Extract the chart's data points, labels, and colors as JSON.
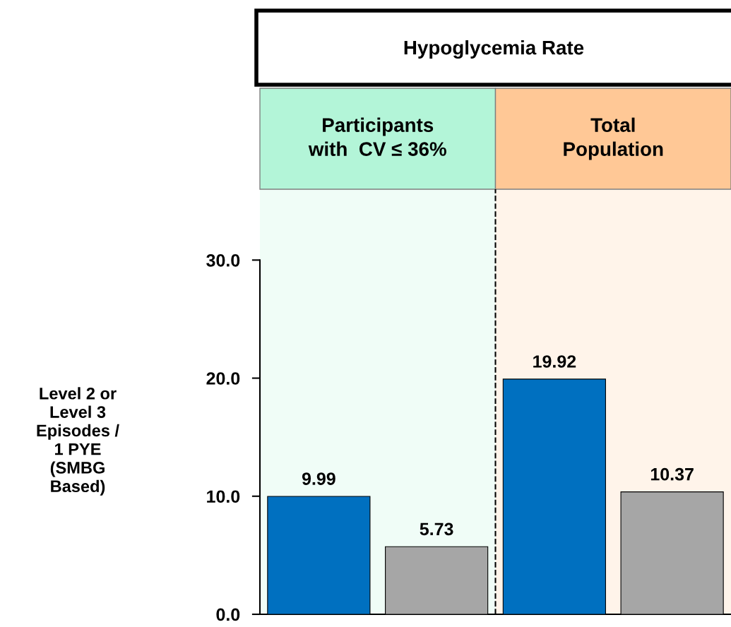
{
  "chart_data": {
    "type": "bar",
    "title": "Hypoglycemia Rate",
    "annotations": [
      "Participants\nwith  CV ≤ 36%",
      "Total\nPopulation",
      "Level 2 or\nLevel 3\nEpisodes /\n1 PYE\n(SMBG\nBased)"
    ],
    "categories": [
      null,
      null,
      null,
      null
    ],
    "values": [
      9.99,
      5.73,
      19.92,
      10.37
    ],
    "colors": [
      "#0070c0",
      "#a6a6a6",
      "#0070c0",
      "#a6a6a6"
    ],
    "ylim": [
      0,
      36
    ],
    "yticks": [
      {
        "value": 0,
        "label": "0.0"
      },
      {
        "value": 10,
        "label": "10.0"
      },
      {
        "value": 20,
        "label": "20.0"
      },
      {
        "value": 30,
        "label": "30.0"
      }
    ],
    "data_labels": true,
    "grid": false,
    "legend": false
  }
}
